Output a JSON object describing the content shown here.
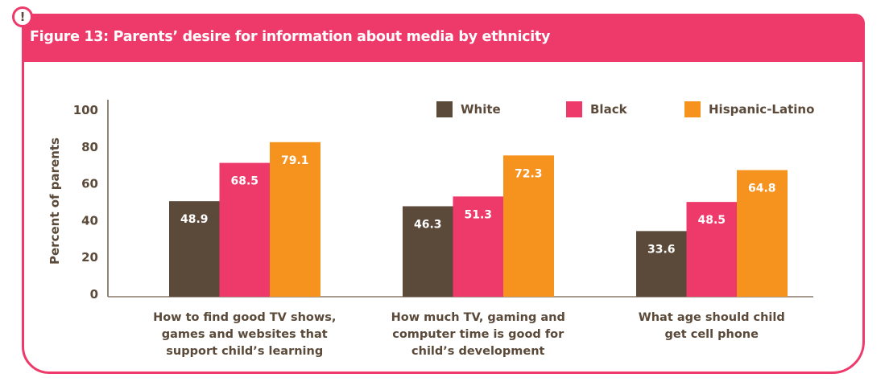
{
  "badge": {
    "symbol": "!"
  },
  "figure": {
    "title": "Figure 13: Parents’ desire for information about media by ethnicity"
  },
  "colors": {
    "accent": "#ee3a6a",
    "text": "#5b4a3a",
    "White": "#5b4a3a",
    "Black": "#ee3a6a",
    "Hispanic-Latino": "#f6921e"
  },
  "chart_data": {
    "type": "bar",
    "title": "Figure 13: Parents’ desire for information about media by ethnicity",
    "xlabel": "",
    "ylabel": "Percent of parents",
    "ylim": [
      0,
      100
    ],
    "yticks": [
      0,
      20,
      40,
      60,
      80,
      100
    ],
    "grid": false,
    "legend_position": "top-right",
    "categories": [
      [
        "How to find good TV shows,",
        "games and websites that",
        "support child’s learning"
      ],
      [
        "How much TV, gaming and",
        "computer time is good for",
        "child’s development"
      ],
      [
        "What age should child",
        "get cell phone"
      ]
    ],
    "series": [
      {
        "name": "White",
        "color": "#5b4a3a",
        "values": [
          48.9,
          46.3,
          33.6
        ]
      },
      {
        "name": "Black",
        "color": "#ee3a6a",
        "values": [
          68.5,
          51.3,
          48.5
        ]
      },
      {
        "name": "Hispanic-Latino",
        "color": "#f6921e",
        "values": [
          79.1,
          72.3,
          64.8
        ]
      }
    ]
  }
}
